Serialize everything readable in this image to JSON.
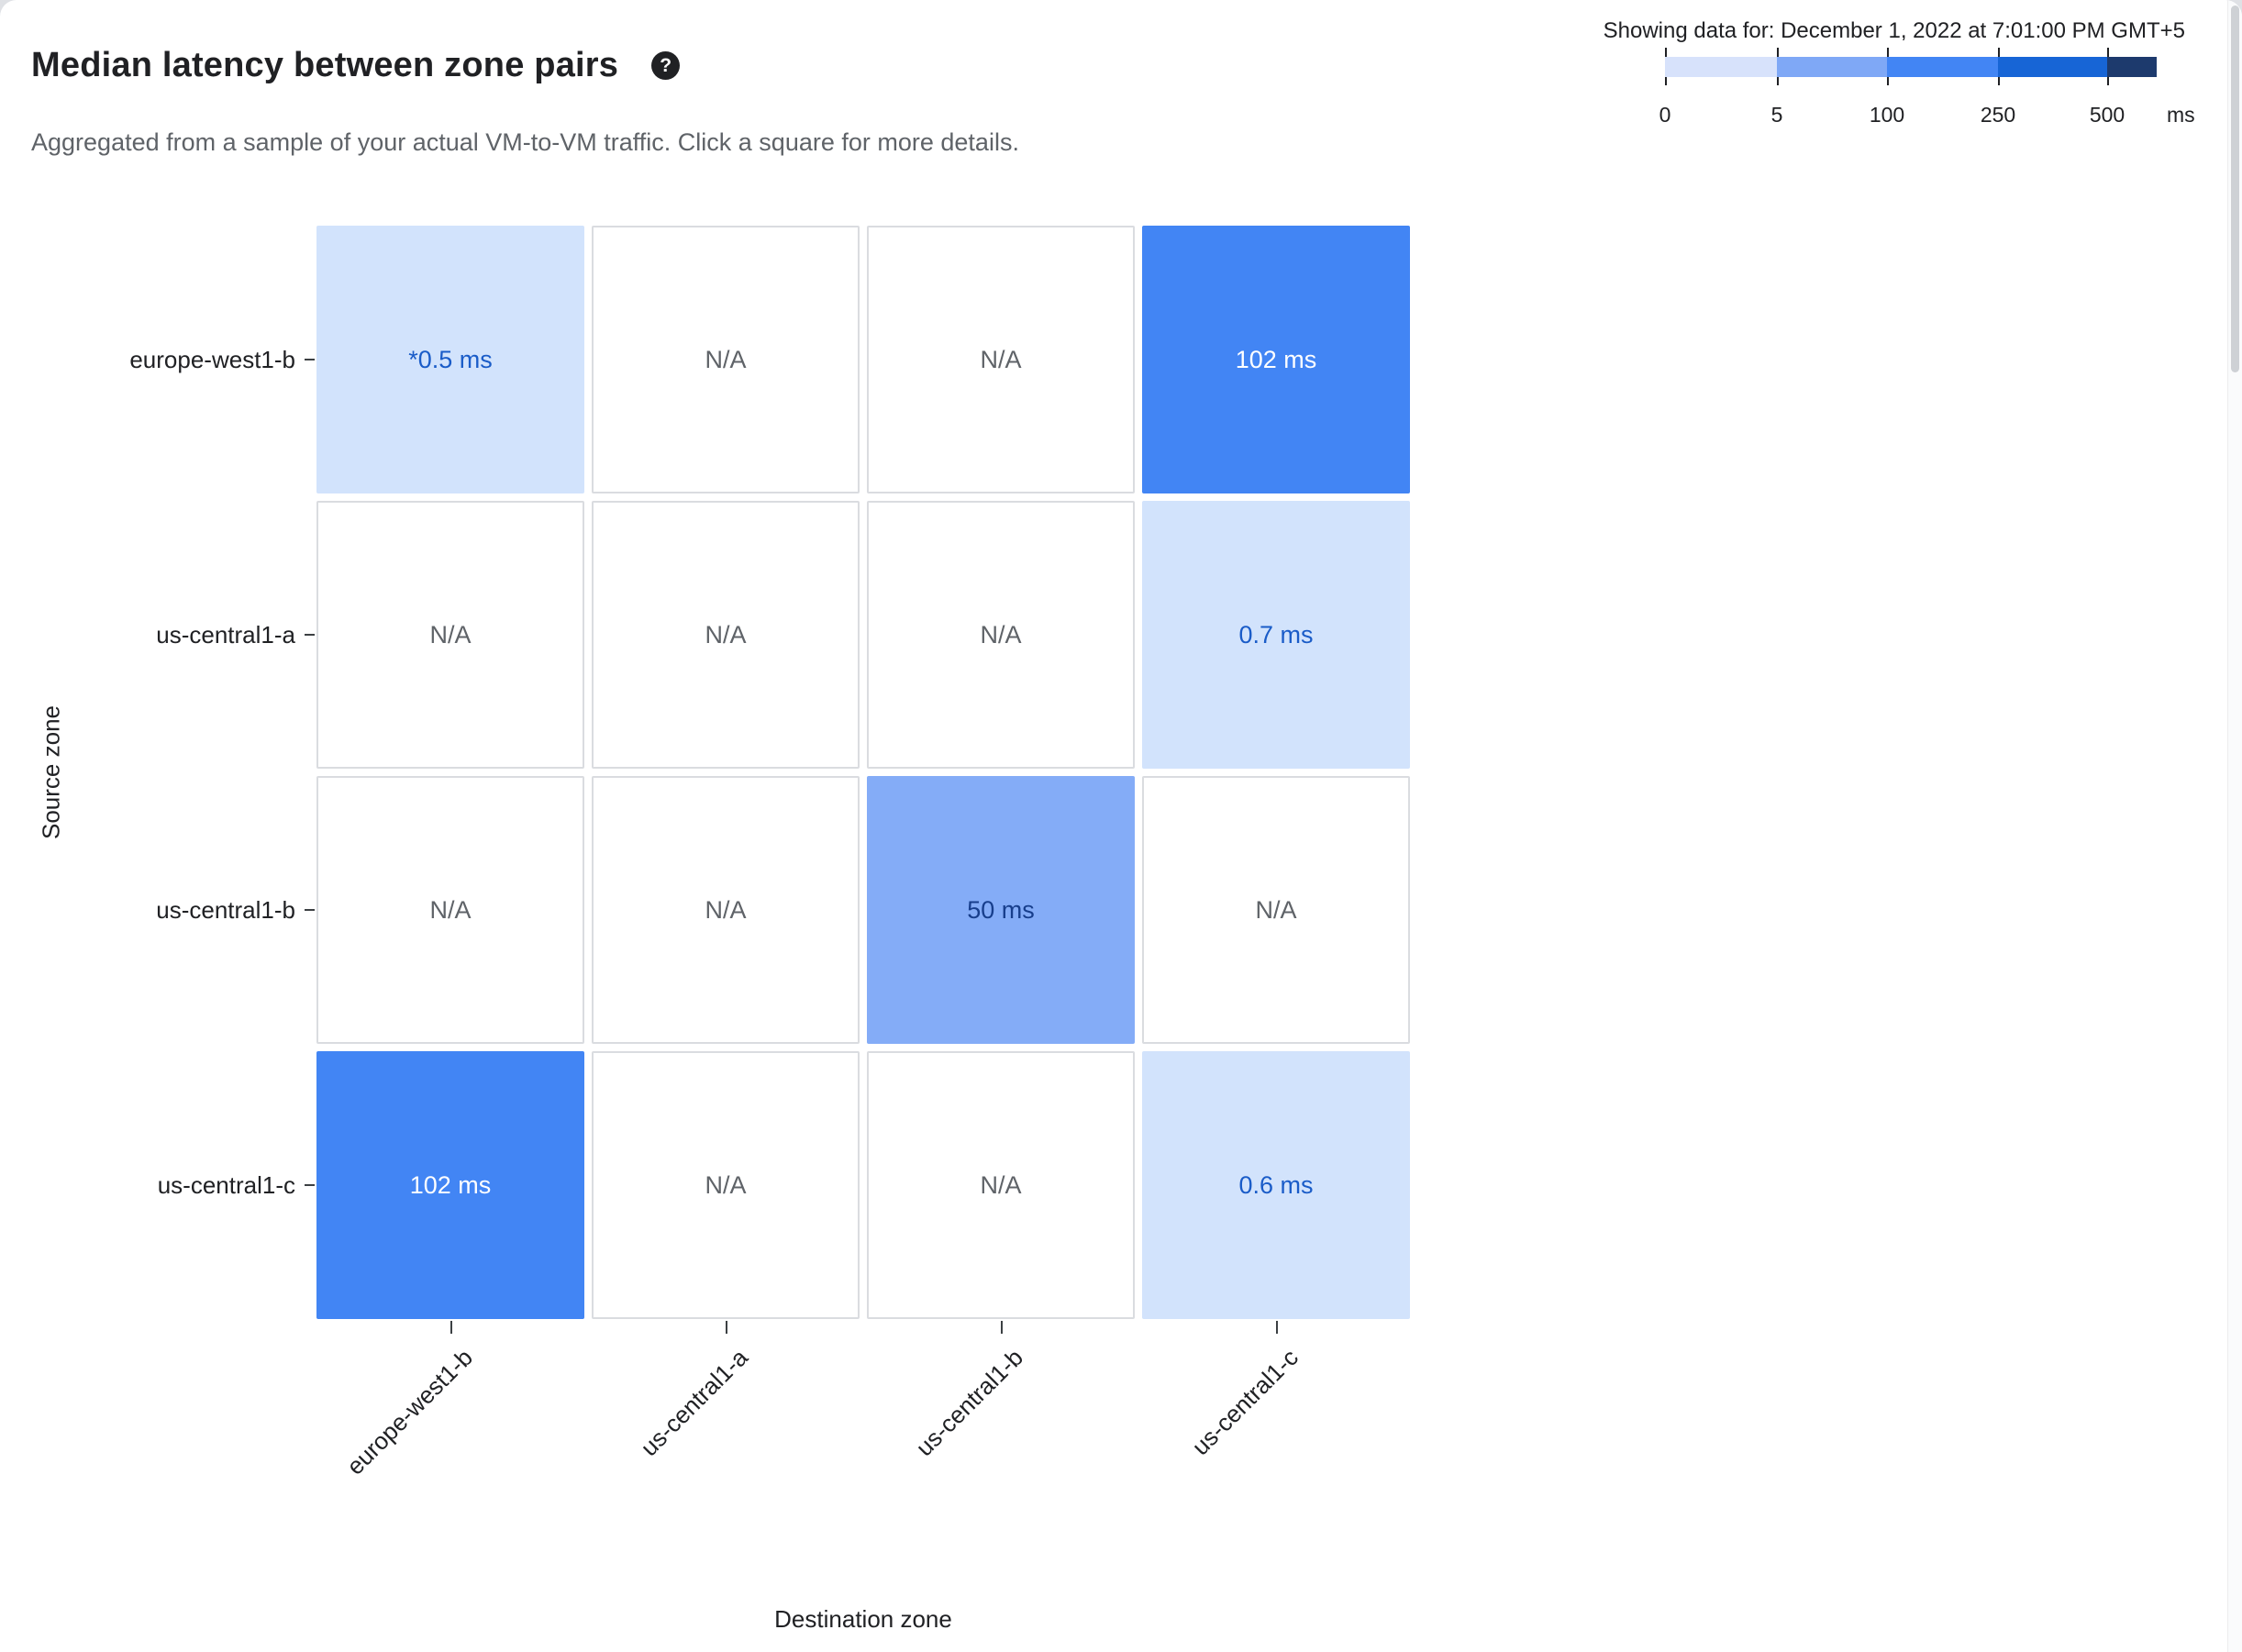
{
  "page": {
    "title": "Median latency between zone pairs",
    "subtitle": "Aggregated from a sample of your actual VM-to-VM traffic. Click a square for more details.",
    "showing_data_for": "Showing data for: December 1, 2022 at 7:01:00 PM GMT+5"
  },
  "icons": {
    "help_glyph": "?"
  },
  "legend": {
    "unit": "ms",
    "tick_labels": [
      "0",
      "5",
      "100",
      "250",
      "500"
    ],
    "segment_colors": [
      "#d7e2fb",
      "#7fa8f6",
      "#4285f4",
      "#1765d6",
      "#1d3a6d"
    ]
  },
  "chart_data": {
    "type": "heatmap",
    "title": "Median latency between zone pairs",
    "xlabel": "Destination zone",
    "ylabel": "Source zone",
    "rows": [
      "europe-west1-b",
      "us-central1-a",
      "us-central1-b",
      "us-central1-c"
    ],
    "columns": [
      "europe-west1-b",
      "us-central1-a",
      "us-central1-b",
      "us-central1-c"
    ],
    "values_ms": [
      [
        0.5,
        null,
        null,
        102
      ],
      [
        null,
        null,
        null,
        0.7
      ],
      [
        null,
        null,
        50,
        null
      ],
      [
        102,
        null,
        null,
        0.6
      ]
    ],
    "cells": [
      [
        {
          "label": "*0.5 ms",
          "bg": "#d2e3fc",
          "fg": "#1a5cc8"
        },
        {
          "label": "N/A",
          "na": true
        },
        {
          "label": "N/A",
          "na": true
        },
        {
          "label": "102 ms",
          "bg": "#4285f4",
          "fg": "#ffffff"
        }
      ],
      [
        {
          "label": "N/A",
          "na": true
        },
        {
          "label": "N/A",
          "na": true
        },
        {
          "label": "N/A",
          "na": true
        },
        {
          "label": "0.7 ms",
          "bg": "#d2e3fc",
          "fg": "#1a5cc8"
        }
      ],
      [
        {
          "label": "N/A",
          "na": true
        },
        {
          "label": "N/A",
          "na": true
        },
        {
          "label": "50 ms",
          "bg": "#84acf7",
          "fg": "#173e8c"
        },
        {
          "label": "N/A",
          "na": true
        }
      ],
      [
        {
          "label": "102 ms",
          "bg": "#4285f4",
          "fg": "#ffffff"
        },
        {
          "label": "N/A",
          "na": true
        },
        {
          "label": "N/A",
          "na": true
        },
        {
          "label": "0.6 ms",
          "bg": "#d2e3fc",
          "fg": "#1a5cc8"
        }
      ]
    ],
    "color_scale": {
      "unit": "ms",
      "thresholds": [
        0,
        5,
        100,
        250,
        500
      ]
    },
    "legend_position": "top-right",
    "grid": false
  }
}
